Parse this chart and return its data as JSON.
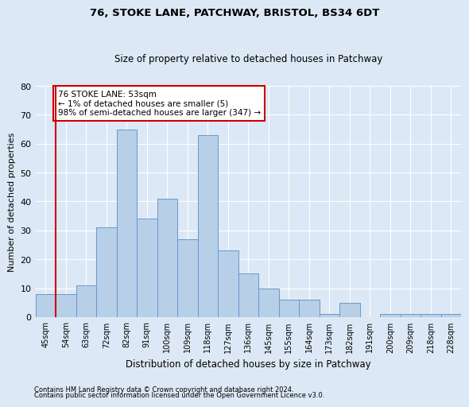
{
  "title1": "76, STOKE LANE, PATCHWAY, BRISTOL, BS34 6DT",
  "title2": "Size of property relative to detached houses in Patchway",
  "xlabel": "Distribution of detached houses by size in Patchway",
  "ylabel": "Number of detached properties",
  "categories": [
    "45sqm",
    "54sqm",
    "63sqm",
    "72sqm",
    "82sqm",
    "91sqm",
    "100sqm",
    "109sqm",
    "118sqm",
    "127sqm",
    "136sqm",
    "145sqm",
    "155sqm",
    "164sqm",
    "173sqm",
    "182sqm",
    "191sqm",
    "200sqm",
    "209sqm",
    "218sqm",
    "228sqm"
  ],
  "values": [
    8,
    8,
    11,
    31,
    65,
    34,
    41,
    27,
    63,
    23,
    15,
    10,
    6,
    6,
    1,
    5,
    0,
    1,
    1,
    1,
    1
  ],
  "bar_color": "#b8cfe8",
  "bar_edge_color": "#6699cc",
  "background_color": "#dce8f5",
  "fig_background_color": "#dce8f5",
  "grid_color": "#ffffff",
  "vline_color": "#cc0000",
  "annotation_lines": [
    "76 STOKE LANE: 53sqm",
    "← 1% of detached houses are smaller (5)",
    "98% of semi-detached houses are larger (347) →"
  ],
  "footnote1": "Contains HM Land Registry data © Crown copyright and database right 2024.",
  "footnote2": "Contains public sector information licensed under the Open Government Licence v3.0.",
  "ylim": [
    0,
    80
  ],
  "yticks": [
    0,
    10,
    20,
    30,
    40,
    50,
    60,
    70,
    80
  ]
}
